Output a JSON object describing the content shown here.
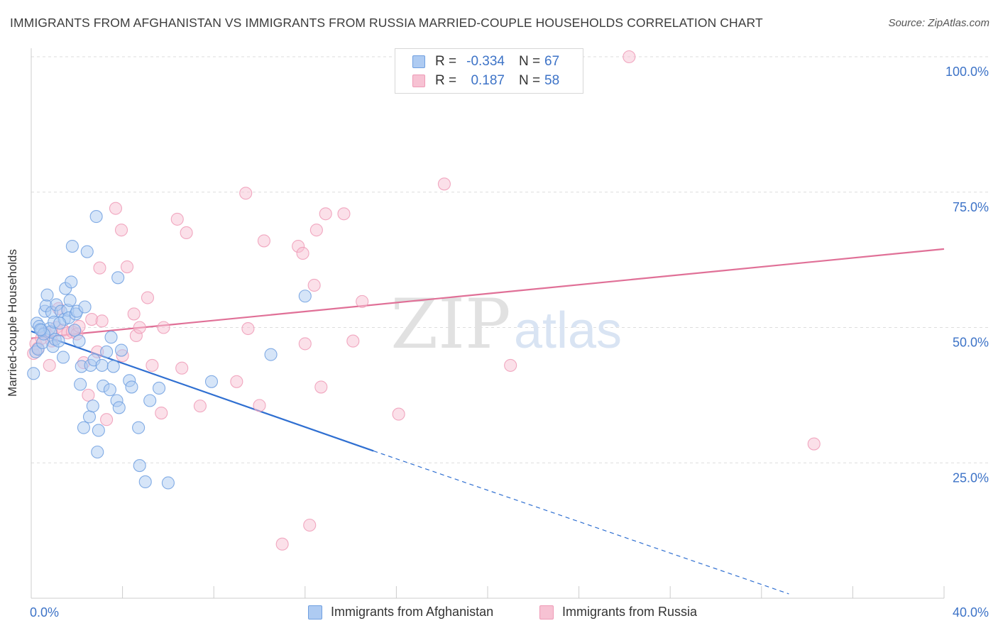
{
  "title": "IMMIGRANTS FROM AFGHANISTAN VS IMMIGRANTS FROM RUSSIA MARRIED-COUPLE HOUSEHOLDS CORRELATION CHART",
  "source": "Source: ZipAtlas.com",
  "watermark": {
    "zip": "ZIP",
    "atlas": "atlas"
  },
  "legend": {
    "r_label": "R =",
    "n_label": "N =",
    "afghanistan": {
      "r": "-0.334",
      "n": "67"
    },
    "russia": {
      "r": "0.187",
      "n": "58"
    }
  },
  "colors": {
    "afghanistan_fill": "#aecbf2",
    "afghanistan_stroke": "#6f9fe0",
    "afghanistan_line": "#2f6fd1",
    "russia_fill": "#f7c2d3",
    "russia_stroke": "#ee9ab6",
    "russia_line": "#e07097",
    "tick_label": "#3d73c7",
    "grid": "#dddddd"
  },
  "chart_data": {
    "type": "scatter",
    "title": "IMMIGRANTS FROM AFGHANISTAN VS IMMIGRANTS FROM RUSSIA MARRIED-COUPLE HOUSEHOLDS CORRELATION CHART",
    "xlabel": "",
    "ylabel": "Married-couple Households",
    "xlim": [
      0,
      40
    ],
    "ylim": [
      0,
      105
    ],
    "x_tick_labels": [
      {
        "value": 0,
        "label": "0.0%"
      },
      {
        "value": 40,
        "label": "40.0%"
      }
    ],
    "y_tick_labels": [
      {
        "value": 25,
        "label": "25.0%"
      },
      {
        "value": 50,
        "label": "50.0%"
      },
      {
        "value": 75,
        "label": "75.0%"
      },
      {
        "value": 100,
        "label": "100.0%"
      }
    ],
    "grid": true,
    "legend_position": "top-center",
    "series": [
      {
        "name": "Immigrants from Afghanistan",
        "color": "#6f9fe0",
        "points": [
          [
            0.1,
            41.5
          ],
          [
            0.2,
            45.5
          ],
          [
            0.25,
            50.8
          ],
          [
            0.3,
            46.0
          ],
          [
            0.35,
            50.2
          ],
          [
            0.45,
            49.5
          ],
          [
            0.5,
            47.2
          ],
          [
            0.6,
            53.0
          ],
          [
            0.65,
            54.0
          ],
          [
            0.7,
            56.0
          ],
          [
            0.8,
            49.8
          ],
          [
            0.85,
            49.2
          ],
          [
            0.9,
            52.8
          ],
          [
            0.95,
            46.5
          ],
          [
            1.0,
            51.0
          ],
          [
            1.05,
            47.8
          ],
          [
            1.1,
            54.2
          ],
          [
            1.2,
            47.5
          ],
          [
            1.3,
            53.0
          ],
          [
            1.4,
            44.5
          ],
          [
            1.45,
            51.5
          ],
          [
            1.5,
            57.2
          ],
          [
            1.6,
            53.2
          ],
          [
            1.65,
            51.8
          ],
          [
            1.7,
            55.0
          ],
          [
            1.75,
            58.4
          ],
          [
            1.8,
            65.0
          ],
          [
            1.9,
            49.5
          ],
          [
            1.95,
            52.5
          ],
          [
            2.0,
            53.0
          ],
          [
            2.1,
            47.5
          ],
          [
            2.15,
            39.5
          ],
          [
            2.2,
            42.8
          ],
          [
            2.3,
            31.5
          ],
          [
            2.35,
            53.8
          ],
          [
            2.45,
            64.0
          ],
          [
            2.55,
            33.5
          ],
          [
            2.6,
            43.0
          ],
          [
            2.7,
            35.5
          ],
          [
            2.75,
            44.0
          ],
          [
            2.85,
            70.5
          ],
          [
            2.9,
            27.0
          ],
          [
            2.95,
            31.0
          ],
          [
            3.1,
            43.0
          ],
          [
            3.15,
            39.2
          ],
          [
            3.3,
            45.5
          ],
          [
            3.45,
            38.5
          ],
          [
            3.5,
            48.2
          ],
          [
            3.6,
            42.8
          ],
          [
            3.75,
            36.5
          ],
          [
            3.85,
            35.2
          ],
          [
            3.8,
            59.2
          ],
          [
            3.95,
            45.8
          ],
          [
            4.3,
            40.2
          ],
          [
            4.4,
            39.0
          ],
          [
            4.7,
            31.5
          ],
          [
            4.75,
            24.5
          ],
          [
            5.0,
            21.5
          ],
          [
            5.2,
            36.5
          ],
          [
            5.6,
            38.8
          ],
          [
            6.0,
            21.3
          ],
          [
            7.9,
            40.0
          ],
          [
            10.5,
            45.0
          ],
          [
            12.0,
            55.8
          ],
          [
            0.55,
            48.8
          ],
          [
            1.25,
            50.8
          ],
          [
            0.4,
            49.6
          ]
        ]
      },
      {
        "name": "Immigrants from Russia",
        "color": "#ee9ab6",
        "points": [
          [
            0.1,
            45.2
          ],
          [
            0.2,
            47.0
          ],
          [
            0.3,
            46.2
          ],
          [
            0.45,
            48.0
          ],
          [
            0.6,
            49.0
          ],
          [
            0.8,
            43.0
          ],
          [
            0.9,
            47.5
          ],
          [
            1.1,
            50.0
          ],
          [
            1.2,
            53.5
          ],
          [
            1.4,
            49.5
          ],
          [
            1.6,
            49.0
          ],
          [
            1.8,
            49.2
          ],
          [
            2.0,
            48.8
          ],
          [
            2.1,
            50.2
          ],
          [
            2.3,
            43.5
          ],
          [
            2.5,
            37.5
          ],
          [
            2.65,
            51.5
          ],
          [
            2.9,
            45.5
          ],
          [
            3.0,
            61.0
          ],
          [
            3.1,
            51.2
          ],
          [
            3.3,
            33.0
          ],
          [
            3.7,
            72.0
          ],
          [
            3.95,
            68.0
          ],
          [
            4.0,
            44.8
          ],
          [
            4.2,
            61.2
          ],
          [
            4.5,
            52.5
          ],
          [
            4.6,
            48.5
          ],
          [
            4.75,
            50.0
          ],
          [
            5.1,
            55.5
          ],
          [
            5.3,
            43.0
          ],
          [
            5.7,
            34.2
          ],
          [
            5.8,
            50.0
          ],
          [
            6.4,
            70.0
          ],
          [
            6.6,
            42.5
          ],
          [
            6.8,
            67.5
          ],
          [
            7.4,
            35.5
          ],
          [
            9.0,
            40.0
          ],
          [
            9.4,
            74.8
          ],
          [
            9.5,
            49.8
          ],
          [
            10.0,
            35.6
          ],
          [
            10.2,
            66.0
          ],
          [
            11.0,
            10.0
          ],
          [
            11.7,
            65.0
          ],
          [
            11.9,
            63.7
          ],
          [
            12.0,
            47.0
          ],
          [
            12.2,
            13.5
          ],
          [
            12.4,
            57.8
          ],
          [
            12.5,
            68.0
          ],
          [
            12.7,
            39.0
          ],
          [
            12.9,
            71.0
          ],
          [
            13.7,
            71.0
          ],
          [
            14.1,
            47.5
          ],
          [
            14.5,
            54.8
          ],
          [
            16.1,
            34.0
          ],
          [
            18.1,
            76.5
          ],
          [
            21.0,
            43.0
          ],
          [
            26.2,
            100.0
          ],
          [
            34.3,
            28.5
          ]
        ]
      }
    ],
    "trend_lines": [
      {
        "series": "Immigrants from Afghanistan",
        "solid_from": [
          0.0,
          49.3
        ],
        "solid_to": [
          15.0,
          27.2
        ],
        "dashed_to": [
          33.2,
          0.8
        ]
      },
      {
        "series": "Immigrants from Russia",
        "from": [
          0.0,
          48.0
        ],
        "to": [
          40.0,
          64.5
        ]
      }
    ]
  }
}
